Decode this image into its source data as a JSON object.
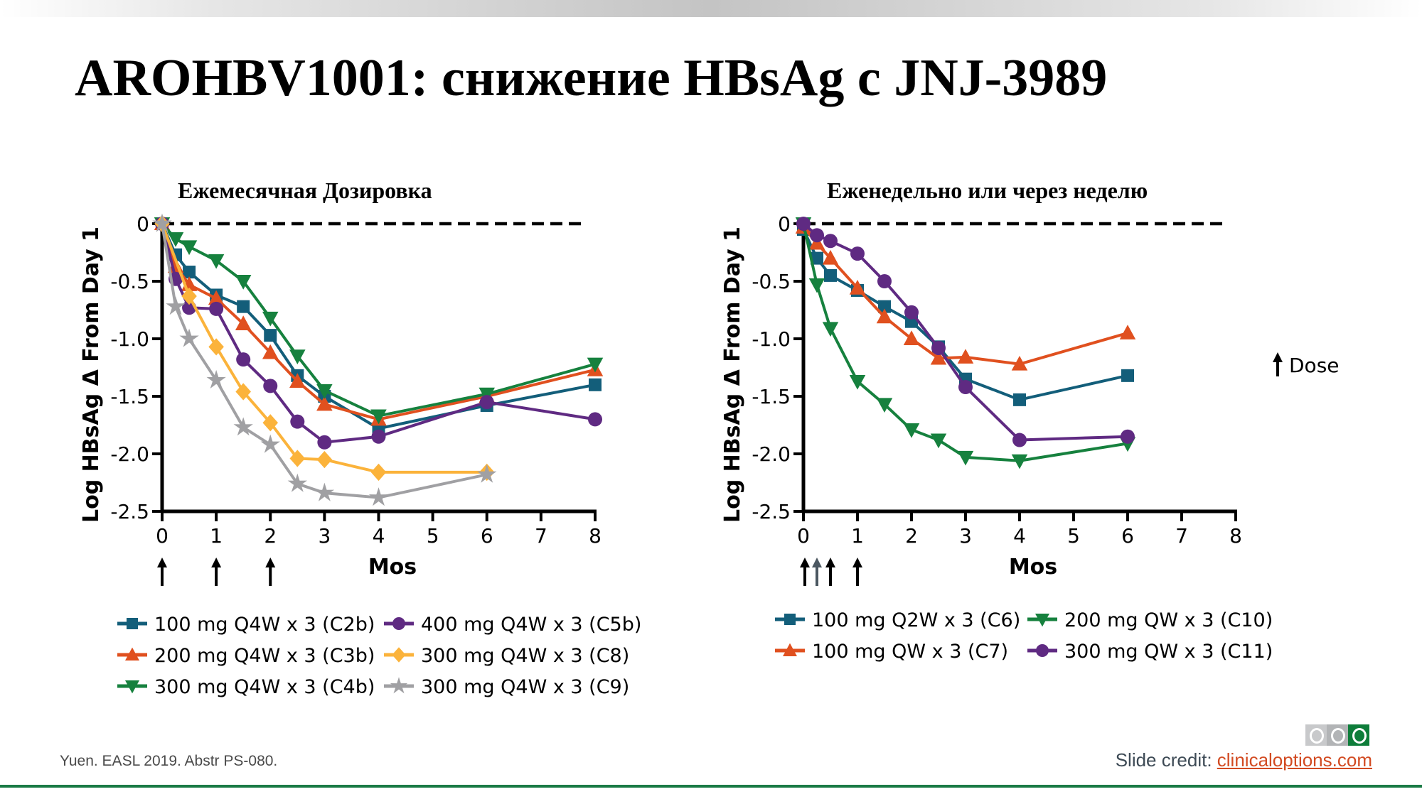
{
  "slide": {
    "title": "AROHBV1001: снижение HBsAg с JNJ-3989",
    "citation": "Yuen. EASL 2019. Abstr PS-080.",
    "credit_label": "Slide credit: ",
    "credit_link": "clinicaloptions.com",
    "logo_text": "CCO",
    "dose_legend": "Dose",
    "colors": {
      "teal": "#135e7a",
      "orange": "#e0501f",
      "green": "#16813e",
      "purple": "#5f2a82",
      "yellow": "#fbb33b",
      "gray": "#a0a0a3",
      "footer_line": "#1a7a45",
      "link": "#d24a21"
    }
  },
  "chart_data": [
    {
      "type": "line",
      "title": "Ежемесячная Дозировка",
      "xlabel": "Mos",
      "ylabel": "Log HBsAg Δ From Day 1",
      "xlim": [
        0,
        8
      ],
      "ylim": [
        -2.5,
        0
      ],
      "xticks": [
        "0",
        "1",
        "2",
        "3",
        "4",
        "5",
        "6",
        "7",
        "8"
      ],
      "yticks": [
        "0",
        "-0.5",
        "-1.0",
        "-1.5",
        "-2.0",
        "-2.5"
      ],
      "reference_line": 0,
      "dose_arrows_months": [
        0,
        1,
        2
      ],
      "grid": false,
      "legend_position": "bottom",
      "series": [
        {
          "name": "100 mg Q4W x 3 (C2b)",
          "marker": "square",
          "color": "#135e7a",
          "x": [
            0,
            0.25,
            0.5,
            1,
            1.5,
            2,
            2.5,
            3,
            4,
            6,
            8
          ],
          "y": [
            0,
            -0.27,
            -0.42,
            -0.62,
            -0.72,
            -0.97,
            -1.32,
            -1.5,
            -1.78,
            -1.58,
            -1.4
          ]
        },
        {
          "name": "200 mg Q4W x 3 (C3b)",
          "marker": "triangle-up",
          "color": "#e0501f",
          "x": [
            0,
            0.25,
            0.5,
            1,
            1.5,
            2,
            2.5,
            3,
            4,
            6,
            8
          ],
          "y": [
            0,
            -0.37,
            -0.53,
            -0.65,
            -0.87,
            -1.12,
            -1.37,
            -1.57,
            -1.7,
            -1.5,
            -1.27
          ]
        },
        {
          "name": "300 mg Q4W x 3 (C4b)",
          "marker": "triangle-down",
          "color": "#16813e",
          "x": [
            0,
            0.25,
            0.5,
            1,
            1.5,
            2,
            2.5,
            3,
            4,
            6,
            8
          ],
          "y": [
            0,
            -0.13,
            -0.2,
            -0.32,
            -0.5,
            -0.82,
            -1.15,
            -1.45,
            -1.67,
            -1.48,
            -1.22
          ]
        },
        {
          "name": "400 mg Q4W x 3 (C5b)",
          "marker": "circle",
          "color": "#5f2a82",
          "x": [
            0,
            0.25,
            0.5,
            1,
            1.5,
            2,
            2.5,
            3,
            4,
            6,
            8
          ],
          "y": [
            0,
            -0.48,
            -0.73,
            -0.74,
            -1.18,
            -1.41,
            -1.72,
            -1.9,
            -1.85,
            -1.55,
            -1.7
          ]
        },
        {
          "name": "300 mg Q4W x 3 (C8)",
          "marker": "diamond",
          "color": "#fbb33b",
          "x": [
            0,
            0.5,
            1,
            1.5,
            2,
            2.5,
            3,
            4,
            6
          ],
          "y": [
            0,
            -0.63,
            -1.07,
            -1.46,
            -1.73,
            -2.04,
            -2.05,
            -2.16,
            -2.16
          ]
        },
        {
          "name": "300 mg Q4W x 3 (C9)",
          "marker": "star",
          "color": "#a0a0a3",
          "x": [
            0,
            0.25,
            0.5,
            1,
            1.5,
            2,
            2.5,
            3,
            4,
            6
          ],
          "y": [
            0,
            -0.72,
            -1.0,
            -1.36,
            -1.77,
            -1.92,
            -2.26,
            -2.34,
            -2.38,
            -2.18
          ]
        }
      ]
    },
    {
      "type": "line",
      "title": "Еженедельно или через неделю",
      "xlabel": "Mos",
      "ylabel": "Log HBsAg Δ From Day 1",
      "xlim": [
        0,
        8
      ],
      "ylim": [
        -2.5,
        0
      ],
      "xticks": [
        "0",
        "1",
        "2",
        "3",
        "4",
        "5",
        "6",
        "7",
        "8"
      ],
      "yticks": [
        "0",
        "-0.5",
        "-1.0",
        "-1.5",
        "-2.0",
        "-2.5"
      ],
      "reference_line": 0,
      "dose_arrows_months": [
        0,
        0.25,
        0.5,
        1
      ],
      "grid": false,
      "legend_position": "bottom",
      "series": [
        {
          "name": "100 mg Q2W x 3 (C6)",
          "marker": "square",
          "color": "#135e7a",
          "x": [
            0,
            0.25,
            0.5,
            1,
            1.5,
            2,
            2.5,
            3,
            4,
            6
          ],
          "y": [
            -0.05,
            -0.3,
            -0.45,
            -0.58,
            -0.72,
            -0.85,
            -1.07,
            -1.35,
            -1.53,
            -1.32
          ]
        },
        {
          "name": "100 mg QW x 3 (C7)",
          "marker": "triangle-up",
          "color": "#e0501f",
          "x": [
            0,
            0.25,
            0.5,
            1,
            1.5,
            2,
            2.5,
            3,
            4,
            6
          ],
          "y": [
            -0.03,
            -0.17,
            -0.3,
            -0.56,
            -0.81,
            -1.0,
            -1.17,
            -1.16,
            -1.22,
            -0.95
          ]
        },
        {
          "name": "200 mg QW x 3 (C10)",
          "marker": "triangle-down",
          "color": "#16813e",
          "x": [
            0,
            0.25,
            0.5,
            1,
            1.5,
            2,
            2.5,
            3,
            4,
            6
          ],
          "y": [
            0,
            -0.53,
            -0.91,
            -1.37,
            -1.57,
            -1.79,
            -1.88,
            -2.03,
            -2.06,
            -1.91
          ]
        },
        {
          "name": "300 mg QW x 3 (C11)",
          "marker": "circle",
          "color": "#5f2a82",
          "x": [
            0,
            0.25,
            0.5,
            1,
            1.5,
            2,
            2.5,
            3,
            4,
            6
          ],
          "y": [
            0,
            -0.1,
            -0.15,
            -0.26,
            -0.5,
            -0.77,
            -1.08,
            -1.42,
            -1.88,
            -1.85
          ]
        }
      ]
    }
  ]
}
